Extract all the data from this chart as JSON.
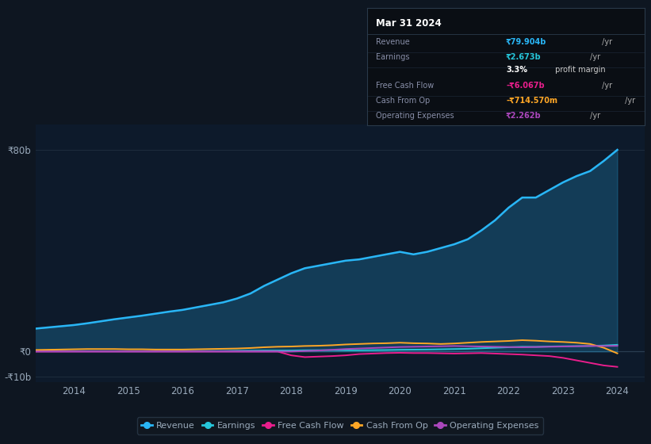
{
  "background_color": "#0e1621",
  "plot_bg_color": "#0d1a2b",
  "grid_color": "#1e2d3d",
  "text_color": "#9aaabb",
  "years": [
    2013.0,
    2013.25,
    2013.5,
    2013.75,
    2014.0,
    2014.25,
    2014.5,
    2014.75,
    2015.0,
    2015.25,
    2015.5,
    2015.75,
    2016.0,
    2016.25,
    2016.5,
    2016.75,
    2017.0,
    2017.25,
    2017.5,
    2017.75,
    2018.0,
    2018.25,
    2018.5,
    2018.75,
    2019.0,
    2019.25,
    2019.5,
    2019.75,
    2020.0,
    2020.25,
    2020.5,
    2020.75,
    2021.0,
    2021.25,
    2021.5,
    2021.75,
    2022.0,
    2022.25,
    2022.5,
    2022.75,
    2023.0,
    2023.25,
    2023.5,
    2023.75,
    2024.0
  ],
  "revenue": [
    8.5,
    9.0,
    9.5,
    10.0,
    10.5,
    11.2,
    12.0,
    12.8,
    13.5,
    14.2,
    15.0,
    15.8,
    16.5,
    17.5,
    18.5,
    19.5,
    21.0,
    23.0,
    26.0,
    28.5,
    31.0,
    33.0,
    34.0,
    35.0,
    36.0,
    36.5,
    37.5,
    38.5,
    39.5,
    38.5,
    39.5,
    41.0,
    42.5,
    44.5,
    48.0,
    52.0,
    57.0,
    61.0,
    61.0,
    64.0,
    67.0,
    69.5,
    71.5,
    75.5,
    79.9
  ],
  "earnings": [
    0.2,
    0.2,
    0.2,
    0.2,
    0.15,
    0.15,
    0.1,
    0.1,
    0.1,
    0.1,
    0.1,
    0.15,
    0.2,
    0.2,
    0.2,
    0.2,
    0.3,
    0.35,
    0.4,
    0.4,
    0.4,
    0.5,
    0.55,
    0.55,
    0.5,
    0.5,
    0.55,
    0.6,
    0.7,
    0.75,
    0.8,
    0.9,
    1.0,
    1.1,
    1.3,
    1.5,
    1.7,
    1.9,
    1.85,
    2.0,
    2.1,
    2.15,
    2.2,
    2.4,
    2.673
  ],
  "free_cash_flow": [
    0.0,
    0.0,
    0.0,
    0.0,
    0.0,
    0.0,
    0.0,
    0.0,
    0.0,
    0.0,
    0.0,
    0.0,
    0.0,
    0.0,
    0.0,
    0.0,
    0.0,
    0.0,
    0.0,
    0.0,
    -1.5,
    -2.2,
    -2.0,
    -1.8,
    -1.5,
    -1.0,
    -0.8,
    -0.6,
    -0.5,
    -0.6,
    -0.6,
    -0.7,
    -0.8,
    -0.7,
    -0.6,
    -0.8,
    -1.0,
    -1.2,
    -1.5,
    -1.8,
    -2.5,
    -3.5,
    -4.5,
    -5.5,
    -6.067
  ],
  "cash_from_op": [
    0.5,
    0.6,
    0.7,
    0.8,
    0.9,
    1.0,
    1.0,
    1.0,
    0.9,
    0.9,
    0.8,
    0.8,
    0.8,
    0.9,
    1.0,
    1.1,
    1.2,
    1.4,
    1.7,
    1.9,
    2.0,
    2.2,
    2.3,
    2.5,
    2.8,
    3.0,
    3.2,
    3.3,
    3.5,
    3.3,
    3.2,
    3.0,
    3.2,
    3.5,
    3.8,
    4.0,
    4.2,
    4.5,
    4.3,
    4.0,
    3.8,
    3.5,
    3.0,
    1.5,
    -0.7145
  ],
  "operating_expenses": [
    0.0,
    0.0,
    0.0,
    0.0,
    0.0,
    0.0,
    0.0,
    0.0,
    0.0,
    0.0,
    0.0,
    0.0,
    0.0,
    0.0,
    0.0,
    0.0,
    0.0,
    0.0,
    0.0,
    0.0,
    0.0,
    0.2,
    0.4,
    0.7,
    1.0,
    1.2,
    1.4,
    1.6,
    1.8,
    1.9,
    2.0,
    2.1,
    2.2,
    2.1,
    2.0,
    1.9,
    1.8,
    1.7,
    1.8,
    1.9,
    2.0,
    2.1,
    2.2,
    2.2,
    2.262
  ],
  "revenue_color": "#29b6f6",
  "earnings_color": "#26c6da",
  "free_cash_flow_color": "#e91e8c",
  "cash_from_op_color": "#ffa726",
  "operating_expenses_color": "#ab47bc",
  "ylim_min": -12,
  "ylim_max": 90,
  "xlim_min": 2013.3,
  "xlim_max": 2024.5,
  "ytick_vals": [
    -10,
    0,
    80
  ],
  "ytick_labels": [
    "-₹10b",
    "₹0",
    "₹80b"
  ],
  "xtick_vals": [
    2014,
    2015,
    2016,
    2017,
    2018,
    2019,
    2020,
    2021,
    2022,
    2023,
    2024
  ],
  "legend_labels": [
    "Revenue",
    "Earnings",
    "Free Cash Flow",
    "Cash From Op",
    "Operating Expenses"
  ],
  "info_title": "Mar 31 2024",
  "info_rows": [
    {
      "label": "Revenue",
      "value": "₹79.904b",
      "suffix": " /yr",
      "color": "#29b6f6"
    },
    {
      "label": "Earnings",
      "value": "₹2.673b",
      "suffix": " /yr",
      "color": "#26c6da"
    },
    {
      "label": "",
      "value": "3.3%",
      "suffix": " profit margin",
      "color": "#ffffff",
      "suffix_color": "#cccccc"
    },
    {
      "label": "Free Cash Flow",
      "value": "-₹6.067b",
      "suffix": " /yr",
      "color": "#e91e8c"
    },
    {
      "label": "Cash From Op",
      "value": "-₹714.570m",
      "suffix": " /yr",
      "color": "#ffa726"
    },
    {
      "label": "Operating Expenses",
      "value": "₹2.262b",
      "suffix": " /yr",
      "color": "#ab47bc"
    }
  ]
}
